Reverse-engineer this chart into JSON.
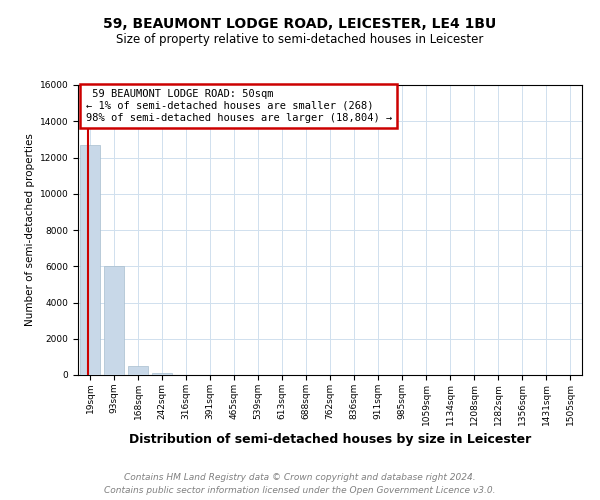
{
  "title": "59, BEAUMONT LODGE ROAD, LEICESTER, LE4 1BU",
  "subtitle": "Size of property relative to semi-detached houses in Leicester",
  "xlabel": "Distribution of semi-detached houses by size in Leicester",
  "ylabel": "Number of semi-detached properties",
  "property_label": "59 BEAUMONT LODGE ROAD: 50sqm",
  "pct_smaller": 1,
  "pct_larger": 98,
  "n_smaller": 268,
  "n_larger": 18804,
  "bin_labels": [
    "19sqm",
    "93sqm",
    "168sqm",
    "242sqm",
    "316sqm",
    "391sqm",
    "465sqm",
    "539sqm",
    "613sqm",
    "688sqm",
    "762sqm",
    "836sqm",
    "911sqm",
    "985sqm",
    "1059sqm",
    "1134sqm",
    "1208sqm",
    "1282sqm",
    "1356sqm",
    "1431sqm",
    "1505sqm"
  ],
  "bin_values": [
    12700,
    6000,
    500,
    100,
    20,
    5,
    2,
    1,
    1,
    0,
    0,
    0,
    0,
    0,
    0,
    0,
    0,
    0,
    0,
    0,
    0
  ],
  "bar_color": "#c8d8e8",
  "bar_edge_color": "#a8bece",
  "red_line_color": "#cc0000",
  "annotation_box_color": "#cc0000",
  "grid_color": "#d0e0ee",
  "ylim": [
    0,
    16000
  ],
  "yticks": [
    0,
    2000,
    4000,
    6000,
    8000,
    10000,
    12000,
    14000,
    16000
  ],
  "red_line_x": -0.28,
  "footer_line1": "Contains HM Land Registry data © Crown copyright and database right 2024.",
  "footer_line2": "Contains public sector information licensed under the Open Government Licence v3.0.",
  "title_fontsize": 10,
  "subtitle_fontsize": 8.5,
  "xlabel_fontsize": 9,
  "ylabel_fontsize": 7.5,
  "tick_fontsize": 6.5,
  "annot_fontsize": 7.5,
  "footer_fontsize": 6.5
}
